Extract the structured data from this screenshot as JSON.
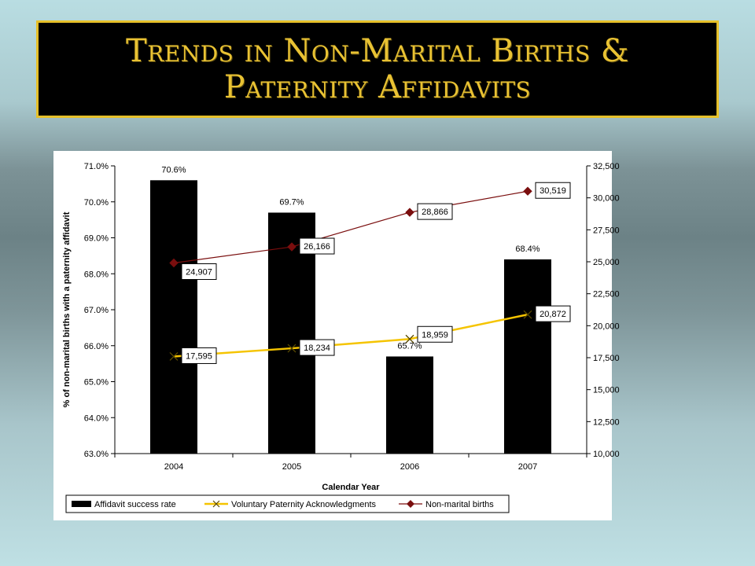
{
  "title": "Trends in Non-Marital Births & Paternity Affidavits",
  "colors": {
    "title_text": "#e9c233",
    "title_border": "#e6c02a",
    "bar": "#000000",
    "vpa_line": "#f5c400",
    "births_line": "#7a0e0e"
  },
  "chart_data": {
    "type": "bar",
    "categories": [
      "2004",
      "2005",
      "2006",
      "2007"
    ],
    "xlabel": "Calendar Year",
    "ylabel": "% of non-marital births with a paternity affidavit",
    "ylim": [
      63.0,
      71.0
    ],
    "y_ticks": [
      "63.0%",
      "64.0%",
      "65.0%",
      "66.0%",
      "67.0%",
      "68.0%",
      "69.0%",
      "70.0%",
      "71.0%"
    ],
    "y2lim": [
      10000,
      32500
    ],
    "y2_ticks": [
      "10,000",
      "12,500",
      "15,000",
      "17,500",
      "20,000",
      "22,500",
      "25,000",
      "27,500",
      "30,000",
      "32,500"
    ],
    "grid": false,
    "legend_placement": "bottom",
    "series": [
      {
        "name": "Affidavit success rate",
        "type": "bar",
        "axis": "left",
        "values": [
          70.6,
          69.7,
          65.7,
          68.4
        ],
        "labels": [
          "70.6%",
          "69.7%",
          "65.7%",
          "68.4%"
        ]
      },
      {
        "name": "Voluntary Paternity Acknowledgments",
        "type": "line",
        "marker": "x",
        "axis": "right",
        "values": [
          17595,
          18234,
          18959,
          20872
        ],
        "labels": [
          "17,595",
          "18,234",
          "18,959",
          "20,872"
        ]
      },
      {
        "name": "Non-marital births",
        "type": "line",
        "marker": "diamond",
        "axis": "right",
        "values": [
          24907,
          26166,
          28866,
          30519
        ],
        "labels": [
          "24,907",
          "26,166",
          "28,866",
          "30,519"
        ]
      }
    ]
  }
}
